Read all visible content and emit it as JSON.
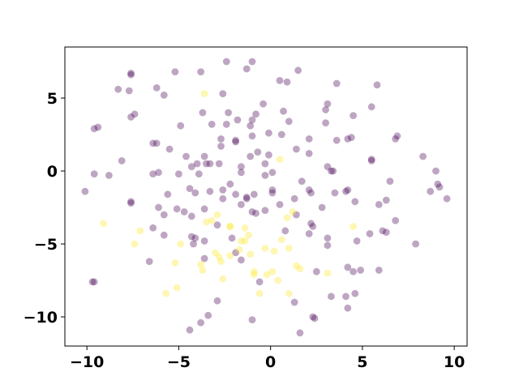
{
  "chart_data": {
    "type": "scatter",
    "title": "",
    "xlabel": "",
    "ylabel": "",
    "xlim": [
      -11.2,
      10.7
    ],
    "ylim": [
      -12.0,
      8.5
    ],
    "grid": false,
    "legend": "none",
    "x_ticks": [
      {
        "value": -10,
        "label": "−10"
      },
      {
        "value": -5,
        "label": "−5"
      },
      {
        "value": 0,
        "label": "0"
      },
      {
        "value": 5,
        "label": "5"
      },
      {
        "value": 10,
        "label": "10"
      }
    ],
    "y_ticks": [
      {
        "value": 5,
        "label": "5"
      },
      {
        "value": 0,
        "label": "0"
      },
      {
        "value": -5,
        "label": "−5"
      },
      {
        "value": -10,
        "label": "−10"
      }
    ],
    "colors": {
      "class_0": "#440154",
      "class_1": "#fde725"
    },
    "point_alpha": 0.35,
    "series": [
      {
        "class": 0,
        "color": "#440154",
        "points": [
          [
            -2.4,
            7.5
          ],
          [
            -1.0,
            7.5
          ],
          [
            -1.3,
            7.0
          ],
          [
            1.5,
            6.9
          ],
          [
            -3.8,
            6.8
          ],
          [
            -5.2,
            6.8
          ],
          [
            -7.6,
            6.7
          ],
          [
            -7.6,
            6.6
          ],
          [
            0.5,
            6.2
          ],
          [
            0.9,
            6.1
          ],
          [
            3.6,
            6.0
          ],
          [
            5.8,
            5.9
          ],
          [
            -6.2,
            5.7
          ],
          [
            -8.3,
            5.6
          ],
          [
            -7.7,
            5.5
          ],
          [
            -2.6,
            5.3
          ],
          [
            -5.8,
            5.2
          ],
          [
            -0.4,
            4.6
          ],
          [
            3.1,
            4.6
          ],
          [
            5.5,
            4.4
          ],
          [
            3.0,
            4.2
          ],
          [
            -3.7,
            4.0
          ],
          [
            -2.3,
            4.0
          ],
          [
            0.7,
            4.1
          ],
          [
            -0.8,
            3.9
          ],
          [
            -7.4,
            3.9
          ],
          [
            -7.6,
            3.7
          ],
          [
            4.5,
            3.8
          ],
          [
            -1.0,
            3.5
          ],
          [
            -1.8,
            3.5
          ],
          [
            1.0,
            3.4
          ],
          [
            3.0,
            3.3
          ],
          [
            -4.9,
            3.1
          ],
          [
            -3.2,
            3.2
          ],
          [
            -2.4,
            3.2
          ],
          [
            -1.1,
            3.1
          ],
          [
            -9.4,
            3.0
          ],
          [
            -9.6,
            2.9
          ],
          [
            -0.1,
            2.6
          ],
          [
            0.6,
            2.5
          ],
          [
            -1.0,
            2.4
          ],
          [
            -2.7,
            2.2
          ],
          [
            -1.9,
            2.1
          ],
          [
            -1.9,
            2.0
          ],
          [
            2.1,
            2.2
          ],
          [
            3.6,
            2.1
          ],
          [
            4.2,
            2.2
          ],
          [
            4.4,
            2.3
          ],
          [
            6.9,
            2.4
          ],
          [
            6.8,
            2.2
          ],
          [
            -6.4,
            1.9
          ],
          [
            -6.2,
            1.9
          ],
          [
            -2.7,
            1.7
          ],
          [
            -5.5,
            1.5
          ],
          [
            -0.7,
            1.3
          ],
          [
            1.4,
            1.5
          ],
          [
            2.1,
            1.2
          ],
          [
            -4.6,
            1.0
          ],
          [
            -3.6,
            1.0
          ],
          [
            -1.1,
            1.0
          ],
          [
            -0.1,
            1.1
          ],
          [
            8.3,
            1.0
          ],
          [
            -8.1,
            0.7
          ],
          [
            5.5,
            0.8
          ],
          [
            5.5,
            0.7
          ],
          [
            -4.0,
            0.5
          ],
          [
            -3.5,
            0.5
          ],
          [
            -3.3,
            0.5
          ],
          [
            -2.8,
            0.5
          ],
          [
            -4.3,
            0.3
          ],
          [
            -0.3,
            0.5
          ],
          [
            -1.6,
            0.3
          ],
          [
            3.1,
            0.3
          ],
          [
            3.3,
            0.0
          ],
          [
            3.4,
            0.0
          ],
          [
            -9.6,
            -0.2
          ],
          [
            -8.8,
            -0.3
          ],
          [
            -6.4,
            -0.2
          ],
          [
            -6.1,
            -0.1
          ],
          [
            -5.0,
            -0.2
          ],
          [
            -3.9,
            -0.2
          ],
          [
            -1.6,
            -0.1
          ],
          [
            -0.3,
            -0.3
          ],
          [
            0.1,
            -0.1
          ],
          [
            -2.2,
            -0.9
          ],
          [
            1.7,
            -0.7
          ],
          [
            6.5,
            -0.7
          ],
          [
            9.0,
            0.0
          ],
          [
            9.1,
            -0.9
          ],
          [
            9.2,
            -1.1
          ],
          [
            -10.1,
            -1.4
          ],
          [
            -4.4,
            -1.2
          ],
          [
            -4.1,
            -1.5
          ],
          [
            -2.6,
            -1.3
          ],
          [
            -3.3,
            -1.4
          ],
          [
            0.1,
            -1.3
          ],
          [
            0.1,
            -1.5
          ],
          [
            -5.6,
            -1.6
          ],
          [
            -1.9,
            -1.6
          ],
          [
            -1.3,
            -1.8
          ],
          [
            -0.9,
            -1.6
          ],
          [
            2.1,
            -1.3
          ],
          [
            2.2,
            -1.5
          ],
          [
            3.5,
            -1.5
          ],
          [
            4.2,
            -1.3
          ],
          [
            4.1,
            -1.4
          ],
          [
            8.7,
            -1.4
          ],
          [
            9.6,
            -1.9
          ],
          [
            -7.6,
            -2.1
          ],
          [
            -7.6,
            -2.2
          ],
          [
            -2.6,
            -1.9
          ],
          [
            -1.3,
            -1.9
          ],
          [
            1.3,
            -1.9
          ],
          [
            -6.1,
            -2.5
          ],
          [
            -5.1,
            -2.6
          ],
          [
            -3.6,
            -2.6
          ],
          [
            -1.6,
            -2.3
          ],
          [
            0.5,
            -2.3
          ],
          [
            2.8,
            -2.5
          ],
          [
            4.6,
            -2.1
          ],
          [
            5.9,
            -2.3
          ],
          [
            6.3,
            -2.0
          ],
          [
            -4.7,
            -2.8
          ],
          [
            -4.3,
            -3.1
          ],
          [
            -1.0,
            -2.8
          ],
          [
            -0.8,
            -2.9
          ],
          [
            -0.3,
            -2.7
          ],
          [
            -5.8,
            -3.0
          ],
          [
            2.2,
            -3.6
          ],
          [
            2.3,
            -3.8
          ],
          [
            6.8,
            -3.4
          ],
          [
            -6.4,
            -3.9
          ],
          [
            -4.3,
            -4.5
          ],
          [
            -4.1,
            -4.6
          ],
          [
            -2.9,
            -3.7
          ],
          [
            -2.1,
            -4.6
          ],
          [
            0.8,
            -4.1
          ],
          [
            2.1,
            -4.3
          ],
          [
            3.1,
            -4.6
          ],
          [
            4.7,
            -4.8
          ],
          [
            5.4,
            -4.3
          ],
          [
            6.1,
            -4.1
          ],
          [
            6.3,
            -4.2
          ],
          [
            7.9,
            -5.0
          ],
          [
            -5.8,
            -4.4
          ],
          [
            -3.6,
            -4.8
          ],
          [
            -4.2,
            -5.0
          ],
          [
            3.1,
            -5.1
          ],
          [
            -1.9,
            -5.6
          ],
          [
            -1.6,
            -6.1
          ],
          [
            -6.6,
            -6.2
          ],
          [
            4.2,
            -6.6
          ],
          [
            4.5,
            -6.9
          ],
          [
            4.9,
            -6.8
          ],
          [
            5.9,
            -6.8
          ],
          [
            2.5,
            -6.9
          ],
          [
            -9.7,
            -7.6
          ],
          [
            -9.6,
            -7.6
          ],
          [
            3.3,
            -8.6
          ],
          [
            4.1,
            -8.6
          ],
          [
            4.6,
            -8.4
          ],
          [
            -2.9,
            -8.9
          ],
          [
            1.3,
            -9.0
          ],
          [
            4.2,
            -9.4
          ],
          [
            -3.4,
            -9.9
          ],
          [
            -1.0,
            -10.2
          ],
          [
            2.3,
            -10.0
          ],
          [
            2.4,
            -10.1
          ],
          [
            -3.8,
            -10.4
          ],
          [
            -4.4,
            -10.9
          ],
          [
            1.6,
            -11.1
          ],
          [
            -3.6,
            -6.0
          ],
          [
            -0.6,
            -7.6
          ],
          [
            1.4,
            -3.0
          ]
        ]
      },
      {
        "class": 1,
        "color": "#fde725",
        "points": [
          [
            -3.6,
            5.3
          ],
          [
            0.5,
            0.8
          ],
          [
            -9.1,
            -3.6
          ],
          [
            -7.4,
            -5.0
          ],
          [
            -7.1,
            -4.1
          ],
          [
            -3.5,
            -3.5
          ],
          [
            -3.2,
            -3.4
          ],
          [
            -2.9,
            -3.0
          ],
          [
            -2.2,
            -3.8
          ],
          [
            -2.2,
            -3.8
          ],
          [
            -1.4,
            -3.9
          ],
          [
            1.2,
            -2.8
          ],
          [
            0.9,
            -3.2
          ],
          [
            -1.7,
            -5.4
          ],
          [
            -1.6,
            -4.8
          ],
          [
            -1.2,
            -4.4
          ],
          [
            -1.4,
            -4.8
          ],
          [
            0.6,
            -4.7
          ],
          [
            -4.9,
            -5.0
          ],
          [
            -3.0,
            -5.6
          ],
          [
            -2.8,
            -5.9
          ],
          [
            -2.7,
            -6.2
          ],
          [
            -1.1,
            -5.7
          ],
          [
            -0.3,
            -5.3
          ],
          [
            0.2,
            -5.5
          ],
          [
            1.0,
            -5.3
          ],
          [
            4.5,
            -3.8
          ],
          [
            -5.2,
            -6.3
          ],
          [
            -3.8,
            -6.4
          ],
          [
            -3.7,
            -6.8
          ],
          [
            -2.2,
            -5.8
          ],
          [
            -0.9,
            -6.9
          ],
          [
            -0.9,
            -7.1
          ],
          [
            0.1,
            -6.9
          ],
          [
            1.4,
            -6.5
          ],
          [
            1.6,
            -6.7
          ],
          [
            3.1,
            -7.0
          ],
          [
            -5.1,
            -8.0
          ],
          [
            -5.7,
            -8.4
          ],
          [
            -2.6,
            -7.4
          ],
          [
            0.4,
            -7.5
          ],
          [
            -0.6,
            -8.4
          ],
          [
            1.0,
            -8.4
          ],
          [
            -0.2,
            -7.1
          ]
        ]
      }
    ]
  }
}
